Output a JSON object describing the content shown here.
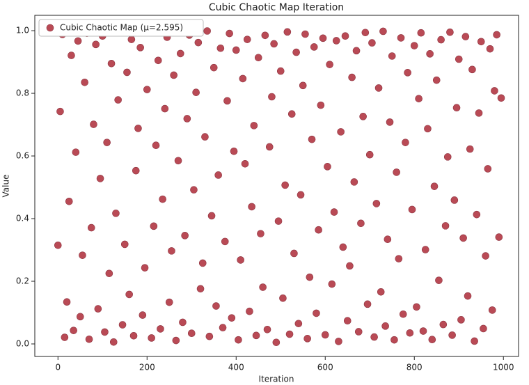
{
  "chart_data": {
    "type": "scatter",
    "title": "Cubic Chaotic Map Iteration",
    "x_label": "Iteration",
    "y_label": "Value",
    "legend_loc": "upper left",
    "grid": false,
    "xlim": [
      -52,
      1034
    ],
    "ylim": [
      -0.04,
      1.049
    ],
    "xticks": [
      0,
      200,
      400,
      600,
      800,
      1000
    ],
    "yticks": [
      {
        "value": 0,
        "label": "0.0"
      },
      0.2,
      0.4,
      0.6,
      0.8,
      {
        "value": 1,
        "label": "1.0"
      }
    ],
    "series": [
      {
        "name": "Cubic Chaotic Map (μ=2.595)",
        "color": "#b94a55",
        "x": [
          0,
          5,
          10,
          15,
          20,
          25,
          30,
          35,
          40,
          45,
          50,
          55,
          60,
          65,
          70,
          75,
          80,
          85,
          90,
          95,
          100,
          105,
          110,
          115,
          120,
          125,
          130,
          135,
          140,
          145,
          150,
          155,
          160,
          165,
          170,
          175,
          180,
          185,
          190,
          195,
          200,
          205,
          210,
          215,
          220,
          225,
          230,
          235,
          240,
          245,
          250,
          255,
          260,
          265,
          270,
          275,
          280,
          285,
          290,
          295,
          300,
          305,
          310,
          315,
          320,
          325,
          330,
          335,
          340,
          345,
          350,
          355,
          360,
          365,
          370,
          375,
          380,
          385,
          390,
          395,
          400,
          405,
          410,
          415,
          420,
          425,
          430,
          435,
          440,
          445,
          450,
          455,
          460,
          465,
          470,
          475,
          480,
          485,
          490,
          495,
          500,
          505,
          510,
          515,
          520,
          525,
          530,
          535,
          540,
          545,
          550,
          555,
          560,
          565,
          570,
          575,
          580,
          585,
          590,
          595,
          600,
          605,
          610,
          615,
          620,
          625,
          630,
          635,
          640,
          645,
          650,
          655,
          660,
          665,
          670,
          675,
          680,
          685,
          690,
          695,
          700,
          705,
          710,
          715,
          720,
          725,
          730,
          735,
          740,
          745,
          750,
          755,
          760,
          765,
          770,
          775,
          780,
          785,
          790,
          795,
          800,
          805,
          810,
          815,
          820,
          825,
          830,
          835,
          840,
          845,
          850,
          855,
          860,
          865,
          870,
          875,
          880,
          885,
          890,
          895,
          900,
          905,
          910,
          915,
          920,
          925,
          930,
          935,
          940,
          945,
          950,
          955,
          960,
          965,
          970,
          975,
          980,
          985,
          990,
          995
        ],
        "values": [
          0.315,
          0.742,
          0.988,
          0.021,
          0.134,
          0.455,
          0.921,
          0.043,
          0.612,
          0.967,
          0.087,
          0.283,
          0.835,
          0.992,
          0.015,
          0.371,
          0.701,
          0.956,
          0.112,
          0.528,
          0.983,
          0.038,
          0.643,
          0.225,
          0.895,
          0.006,
          0.417,
          0.779,
          0.994,
          0.061,
          0.318,
          0.867,
          0.158,
          0.972,
          0.026,
          0.553,
          0.688,
          0.946,
          0.092,
          0.243,
          0.812,
          0.997,
          0.019,
          0.376,
          0.634,
          0.905,
          0.048,
          0.462,
          0.751,
          0.979,
          0.133,
          0.297,
          0.858,
          0.011,
          0.585,
          0.927,
          0.069,
          0.346,
          0.719,
          0.986,
          0.034,
          0.492,
          0.803,
          0.962,
          0.176,
          0.258,
          0.661,
          0.999,
          0.024,
          0.409,
          0.882,
          0.121,
          0.539,
          0.944,
          0.052,
          0.327,
          0.776,
          0.991,
          0.083,
          0.615,
          0.938,
          0.013,
          0.268,
          0.847,
          0.575,
          0.972,
          0.104,
          0.438,
          0.697,
          0.027,
          0.914,
          0.352,
          0.181,
          0.985,
          0.046,
          0.629,
          0.789,
          0.958,
          0.005,
          0.392,
          0.871,
          0.146,
          0.507,
          0.996,
          0.031,
          0.734,
          0.289,
          0.931,
          0.065,
          0.476,
          0.825,
          0.989,
          0.017,
          0.213,
          0.653,
          0.948,
          0.098,
          0.364,
          0.762,
          0.976,
          0.029,
          0.566,
          0.892,
          0.191,
          0.421,
          0.968,
          0.008,
          0.677,
          0.309,
          0.983,
          0.074,
          0.249,
          0.851,
          0.517,
          0.936,
          0.039,
          0.385,
          0.726,
          0.994,
          0.127,
          0.604,
          0.961,
          0.022,
          0.448,
          0.817,
          0.166,
          0.998,
          0.057,
          0.334,
          0.708,
          0.919,
          0.013,
          0.548,
          0.272,
          0.977,
          0.095,
          0.643,
          0.866,
          0.035,
          0.429,
          0.952,
          0.118,
          0.783,
          0.993,
          0.041,
          0.301,
          0.687,
          0.926,
          0.014,
          0.503,
          0.842,
          0.203,
          0.971,
          0.062,
          0.377,
          0.597,
          0.995,
          0.028,
          0.459,
          0.754,
          0.909,
          0.077,
          0.338,
          0.981,
          0.153,
          0.622,
          0.876,
          0.009,
          0.413,
          0.737,
          0.965,
          0.049,
          0.281,
          0.559,
          0.942,
          0.108,
          0.808,
          0.987,
          0.341,
          0.785
        ]
      }
    ]
  }
}
